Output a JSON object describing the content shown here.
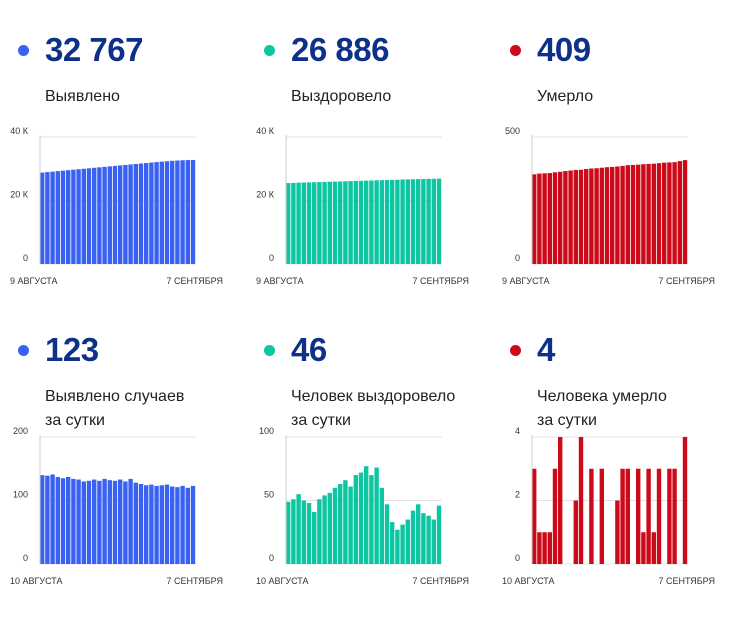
{
  "chart_data": [
    {
      "type": "bar",
      "headline": "32 767",
      "label_lines": [
        "Выявлено"
      ],
      "color": "#3a62f2",
      "x_start_label": "9 АВГУСТА",
      "x_end_label": "7 СЕНТЯБРЯ",
      "ylim": [
        0,
        40000
      ],
      "y_ticks": [
        {
          "v": 0,
          "label": "0"
        },
        {
          "v": 20000,
          "label": "20 К"
        },
        {
          "v": 40000,
          "label": "40 К"
        }
      ],
      "values": [
        28800,
        28950,
        29100,
        29250,
        29400,
        29550,
        29700,
        29850,
        30000,
        30150,
        30300,
        30450,
        30600,
        30750,
        30900,
        31050,
        31200,
        31350,
        31500,
        31650,
        31800,
        31950,
        32100,
        32250,
        32380,
        32500,
        32600,
        32680,
        32740,
        32767
      ]
    },
    {
      "type": "bar",
      "headline": "26 886",
      "label_lines": [
        "Выздоровело"
      ],
      "color": "#0dc6a1",
      "x_start_label": "9 АВГУСТА",
      "x_end_label": "7 СЕНТЯБРЯ",
      "ylim": [
        0,
        40000
      ],
      "y_ticks": [
        {
          "v": 0,
          "label": "0"
        },
        {
          "v": 20000,
          "label": "20 К"
        },
        {
          "v": 40000,
          "label": "40 К"
        }
      ],
      "values": [
        25500,
        25550,
        25600,
        25650,
        25700,
        25750,
        25800,
        25850,
        25900,
        25950,
        26000,
        26050,
        26100,
        26150,
        26200,
        26250,
        26300,
        26350,
        26400,
        26450,
        26500,
        26550,
        26600,
        26650,
        26700,
        26740,
        26780,
        26820,
        26850,
        26886
      ]
    },
    {
      "type": "bar",
      "headline": "409",
      "label_lines": [
        "Умерло"
      ],
      "color": "#cc0a1a",
      "x_start_label": "9 АВГУСТА",
      "x_end_label": "7 СЕНТЯБРЯ",
      "ylim": [
        0,
        500
      ],
      "y_ticks": [
        {
          "v": 0,
          "label": "0"
        },
        {
          "v": 500,
          "label": "500"
        }
      ],
      "values": [
        353,
        356,
        357,
        358,
        361,
        363,
        366,
        368,
        370,
        371,
        374,
        376,
        377,
        379,
        381,
        382,
        384,
        386,
        389,
        390,
        391,
        393,
        394,
        395,
        397,
        399,
        400,
        401,
        405,
        409
      ]
    },
    {
      "type": "bar",
      "headline": "123",
      "label_lines": [
        "Выявлено случаев",
        "за сутки"
      ],
      "color": "#3a62f2",
      "x_start_label": "10 АВГУСТА",
      "x_end_label": "7 СЕНТЯБРЯ",
      "ylim": [
        0,
        200
      ],
      "y_ticks": [
        {
          "v": 0,
          "label": "0"
        },
        {
          "v": 100,
          "label": "100"
        },
        {
          "v": 200,
          "label": "200"
        }
      ],
      "values": [
        140,
        139,
        141,
        137,
        135,
        137,
        134,
        133,
        130,
        131,
        133,
        131,
        134,
        132,
        131,
        133,
        130,
        134,
        128,
        126,
        124,
        125,
        123,
        124,
        125,
        122,
        121,
        123,
        120,
        123
      ]
    },
    {
      "type": "bar",
      "headline": "46",
      "label_lines": [
        "Человек выздоровело",
        "за сутки"
      ],
      "color": "#0dc6a1",
      "x_start_label": "10 АВГУСТА",
      "x_end_label": "7 СЕНТЯБРЯ",
      "ylim": [
        0,
        100
      ],
      "y_ticks": [
        {
          "v": 0,
          "label": "0"
        },
        {
          "v": 50,
          "label": "50"
        },
        {
          "v": 100,
          "label": "100"
        }
      ],
      "values": [
        49,
        51,
        55,
        50,
        48,
        41,
        51,
        54,
        56,
        60,
        63,
        66,
        61,
        70,
        72,
        77,
        70,
        76,
        60,
        47,
        33,
        27,
        31,
        35,
        42,
        47,
        40,
        38,
        35,
        46
      ]
    },
    {
      "type": "bar",
      "headline": "4",
      "label_lines": [
        "Человека умерло",
        "за сутки"
      ],
      "color": "#cc0a1a",
      "x_start_label": "10 АВГУСТА",
      "x_end_label": "7 СЕНТЯБРЯ",
      "ylim": [
        0,
        4
      ],
      "y_ticks": [
        {
          "v": 0,
          "label": "0"
        },
        {
          "v": 2,
          "label": "2"
        },
        {
          "v": 4,
          "label": "4"
        }
      ],
      "values": [
        3,
        1,
        1,
        1,
        3,
        4,
        0,
        0,
        2,
        4,
        0,
        3,
        0,
        3,
        0,
        0,
        2,
        3,
        3,
        0,
        3,
        1,
        3,
        1,
        3,
        0,
        3,
        3,
        0,
        4
      ]
    }
  ]
}
